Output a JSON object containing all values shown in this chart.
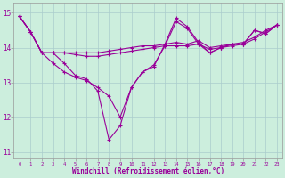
{
  "background_color": "#cceedd",
  "grid_color": "#aacccc",
  "line_color": "#990099",
  "xlabel": "Windchill (Refroidissement éolien,°C)",
  "xlim": [
    -0.5,
    23.5
  ],
  "ylim": [
    10.8,
    15.3
  ],
  "yticks": [
    11,
    12,
    13,
    14,
    15
  ],
  "xticks": [
    0,
    1,
    2,
    3,
    4,
    5,
    6,
    7,
    8,
    9,
    10,
    11,
    12,
    13,
    14,
    15,
    16,
    17,
    18,
    19,
    20,
    21,
    22,
    23
  ],
  "line1": [
    14.9,
    14.45,
    13.85,
    13.85,
    13.55,
    13.2,
    13.1,
    12.75,
    11.35,
    11.75,
    12.85,
    13.3,
    13.45,
    14.1,
    14.85,
    14.6,
    14.15,
    13.85,
    14.0,
    14.1,
    14.1,
    14.5,
    14.4,
    14.65
  ],
  "line2": [
    14.9,
    14.45,
    13.85,
    13.85,
    13.85,
    13.8,
    13.75,
    13.75,
    13.8,
    13.85,
    13.9,
    13.95,
    14.0,
    14.05,
    14.05,
    14.05,
    14.1,
    13.95,
    14.0,
    14.05,
    14.1,
    14.25,
    14.45,
    14.65
  ],
  "line3": [
    14.9,
    14.45,
    13.85,
    13.85,
    13.85,
    13.85,
    13.85,
    13.85,
    13.9,
    13.95,
    14.0,
    14.05,
    14.05,
    14.1,
    14.15,
    14.1,
    14.2,
    14.0,
    14.05,
    14.1,
    14.15,
    14.3,
    14.5,
    14.65
  ],
  "line4": [
    14.9,
    14.45,
    13.85,
    13.55,
    13.3,
    13.15,
    13.05,
    12.85,
    12.6,
    12.0,
    12.85,
    13.3,
    13.5,
    14.05,
    14.75,
    14.55,
    14.1,
    13.85,
    14.0,
    14.1,
    14.1,
    14.5,
    14.4,
    14.65
  ],
  "figwidth": 3.2,
  "figheight": 2.0,
  "dpi": 100
}
